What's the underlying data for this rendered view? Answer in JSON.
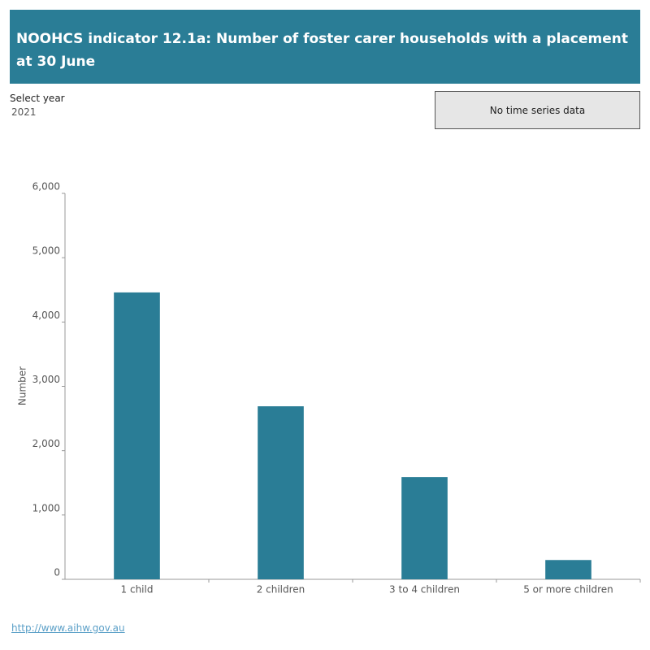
{
  "header": {
    "title": "NOOHCS indicator 12.1a: Number of foster carer households with a placement at 30 June"
  },
  "filter": {
    "label": "Select year",
    "value": "2021"
  },
  "button": {
    "label": "No time series data"
  },
  "footer": {
    "link": "http://www.aihw.gov.au"
  },
  "chart_data": {
    "type": "bar",
    "y_label": "Number",
    "categories": [
      "1 child",
      "2 children",
      "3 to 4 children",
      "5 or more children"
    ],
    "values": [
      4460,
      2690,
      1590,
      300
    ],
    "color": "#2a7d96",
    "ylim": [
      0,
      6000
    ],
    "yticks": [
      0,
      {
        "value": 1000,
        "label": "1,000"
      },
      {
        "value": 2000,
        "label": "2,000"
      },
      {
        "value": 3000,
        "label": "3,000"
      },
      {
        "value": 4000,
        "label": "4,000"
      },
      {
        "value": 5000,
        "label": "5,000"
      },
      {
        "value": 6000,
        "label": "6,000"
      }
    ],
    "grid": false
  }
}
